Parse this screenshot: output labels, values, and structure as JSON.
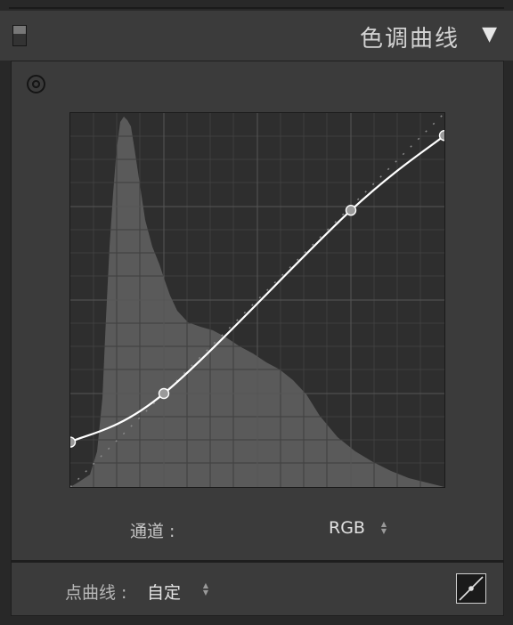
{
  "panel": {
    "title": "色调曲线",
    "toggle_glyph": "▼",
    "collapse_icon": "panel-switch-icon"
  },
  "targeted_adjustment_icon": "target-icon",
  "channel": {
    "label": "通道 :",
    "value": "RGB",
    "spinner_icon": "updown-arrows-icon"
  },
  "point_curve": {
    "label": "点曲线 :",
    "value": "自定",
    "spinner_icon": "updown-arrows-icon"
  },
  "edit_points_icon": "point-curve-edit-icon",
  "colors": {
    "panel_bg": "#3b3b3b",
    "graph_bg": "#2e2e2e",
    "histogram": "#5a5a5a",
    "curve": "#ffffff",
    "control_point": "#9a9a9a"
  },
  "curve": {
    "points": [
      {
        "x": 0.0,
        "y": 0.12
      },
      {
        "x": 0.25,
        "y": 0.25
      },
      {
        "x": 0.75,
        "y": 0.74
      },
      {
        "x": 1.0,
        "y": 0.94
      }
    ]
  }
}
